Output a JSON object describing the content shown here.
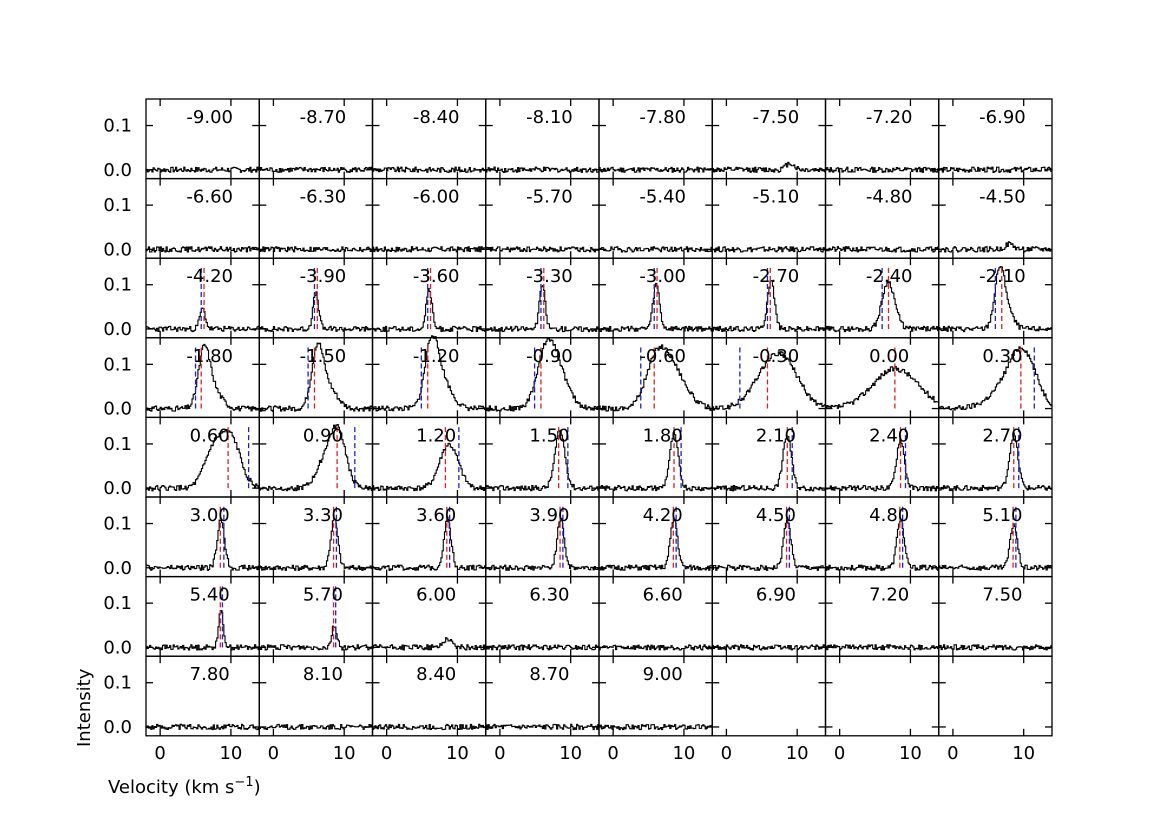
{
  "chart_data": {
    "type": "line",
    "layout": "8x8 channel-map grid of spectra",
    "xlabel": "Velocity (km s",
    "xlabel_superscript": "−1",
    "xlabel_close": ")",
    "ylabel": "Intensity",
    "xlim": [
      -2,
      14
    ],
    "ylim": [
      -0.02,
      0.16
    ],
    "xticks": [
      0,
      10
    ],
    "yticks": [
      0.0,
      0.1
    ],
    "ytick_labels": [
      "0.0",
      "0.1"
    ],
    "xtick_labels": [
      "0",
      "10"
    ],
    "panel_labels": [
      "-9.00",
      "-8.70",
      "-8.40",
      "-8.10",
      "-7.80",
      "-7.50",
      "-7.20",
      "-6.90",
      "-6.60",
      "-6.30",
      "-6.00",
      "-5.70",
      "-5.40",
      "-5.10",
      "-4.80",
      "-4.50",
      "-4.20",
      "-3.90",
      "-3.60",
      "-3.30",
      "-3.00",
      "-2.70",
      "-2.40",
      "-2.10",
      "-1.80",
      "-1.50",
      "-1.20",
      "-0.90",
      "-0.60",
      "-0.30",
      "0.00",
      "0.30",
      "0.60",
      "0.90",
      "1.20",
      "1.50",
      "1.80",
      "2.10",
      "2.40",
      "2.70",
      "3.00",
      "3.30",
      "3.60",
      "3.90",
      "4.20",
      "4.50",
      "4.80",
      "5.10",
      "5.40",
      "5.70",
      "6.00",
      "6.30",
      "6.60",
      "6.90",
      "7.20",
      "7.50",
      "7.80",
      "8.10",
      "8.40",
      "8.70",
      "9.00"
    ],
    "red_marker_velocity": [
      null,
      null,
      null,
      null,
      null,
      null,
      null,
      null,
      null,
      null,
      null,
      null,
      null,
      null,
      null,
      null,
      6.2,
      6.2,
      6.2,
      6.2,
      6.2,
      6.2,
      6.9,
      6.9,
      5.8,
      5.8,
      5.8,
      5.8,
      5.8,
      5.8,
      7.8,
      9.6,
      9.6,
      9.0,
      8.3,
      8.3,
      8.6,
      8.6,
      8.6,
      8.6,
      8.5,
      8.5,
      8.5,
      8.5,
      8.5,
      8.5,
      8.5,
      8.5,
      8.5,
      8.5,
      null,
      null,
      null,
      null,
      null,
      null,
      null,
      null,
      null,
      null,
      null
    ],
    "blue_marker_velocity": [
      null,
      null,
      null,
      null,
      null,
      null,
      null,
      null,
      null,
      null,
      null,
      null,
      null,
      null,
      null,
      null,
      5.8,
      5.8,
      5.8,
      5.8,
      5.8,
      5.8,
      6.0,
      6.0,
      5.0,
      4.9,
      4.9,
      4.9,
      3.9,
      1.9,
      null,
      11.5,
      12.5,
      11.5,
      10.2,
      9.6,
      9.6,
      9.3,
      9.3,
      9.3,
      9.0,
      8.9,
      8.9,
      8.9,
      8.9,
      8.9,
      8.9,
      8.9,
      8.8,
      8.8,
      null,
      null,
      null,
      null,
      null,
      null,
      null,
      null,
      null,
      null,
      null
    ],
    "series_peaks": [
      [],
      [],
      [],
      [],
      [],
      [
        [
          9.0,
          0.015,
          0.6
        ]
      ],
      [],
      [],
      [],
      [],
      [],
      [],
      [],
      [],
      [],
      [
        [
          8.0,
          0.012,
          0.6
        ]
      ],
      [
        [
          6.0,
          0.045,
          0.4
        ]
      ],
      [
        [
          6.0,
          0.08,
          0.4
        ]
      ],
      [
        [
          6.0,
          0.09,
          0.4
        ]
      ],
      [
        [
          6.0,
          0.1,
          0.4
        ]
      ],
      [
        [
          6.1,
          0.1,
          0.45
        ]
      ],
      [
        [
          6.3,
          0.11,
          0.5
        ]
      ],
      [
        [
          6.7,
          0.09,
          0.8
        ],
        [
          7.6,
          0.03,
          0.8
        ]
      ],
      [
        [
          6.6,
          0.12,
          0.7
        ],
        [
          7.6,
          0.04,
          0.9
        ]
      ],
      [
        [
          6.2,
          0.12,
          0.8
        ],
        [
          7.5,
          0.04,
          1.2
        ]
      ],
      [
        [
          6.2,
          0.12,
          0.8
        ],
        [
          7.6,
          0.05,
          1.3
        ]
      ],
      [
        [
          6.3,
          0.12,
          0.9
        ],
        [
          7.6,
          0.07,
          1.4
        ]
      ],
      [
        [
          6.5,
          0.1,
          1.3
        ],
        [
          8.0,
          0.08,
          1.6
        ]
      ],
      [
        [
          6.0,
          0.08,
          1.5
        ],
        [
          8.2,
          0.09,
          2.0
        ]
      ],
      [
        [
          5.5,
          0.06,
          2.2
        ],
        [
          8.3,
          0.09,
          2.2
        ]
      ],
      [
        [
          7.9,
          0.09,
          3.2
        ]
      ],
      [
        [
          10.0,
          0.1,
          1.8
        ],
        [
          8.0,
          0.05,
          2.5
        ]
      ],
      [
        [
          10.0,
          0.11,
          1.4
        ],
        [
          7.5,
          0.08,
          1.3
        ]
      ],
      [
        [
          9.2,
          0.12,
          1.1
        ],
        [
          7.3,
          0.06,
          1.2
        ]
      ],
      [
        [
          8.6,
          0.09,
          1.2
        ],
        [
          10.0,
          0.02,
          1.0
        ]
      ],
      [
        [
          8.5,
          0.13,
          0.7
        ]
      ],
      [
        [
          8.6,
          0.12,
          0.6
        ]
      ],
      [
        [
          8.6,
          0.12,
          0.6
        ]
      ],
      [
        [
          8.6,
          0.11,
          0.55
        ]
      ],
      [
        [
          8.6,
          0.12,
          0.6
        ]
      ],
      [
        [
          8.6,
          0.11,
          0.5
        ]
      ],
      [
        [
          8.6,
          0.11,
          0.5
        ]
      ],
      [
        [
          8.6,
          0.11,
          0.5
        ]
      ],
      [
        [
          8.6,
          0.11,
          0.5
        ]
      ],
      [
        [
          8.6,
          0.11,
          0.5
        ]
      ],
      [
        [
          8.6,
          0.11,
          0.5
        ]
      ],
      [
        [
          8.6,
          0.11,
          0.5
        ]
      ],
      [
        [
          8.6,
          0.1,
          0.5
        ]
      ],
      [
        [
          8.6,
          0.08,
          0.35
        ]
      ],
      [
        [
          8.6,
          0.05,
          0.35
        ]
      ],
      [
        [
          8.6,
          0.02,
          0.6
        ]
      ],
      [],
      [],
      [],
      [],
      [],
      [],
      [],
      [],
      [],
      [],
      [],
      [],
      []
    ]
  }
}
